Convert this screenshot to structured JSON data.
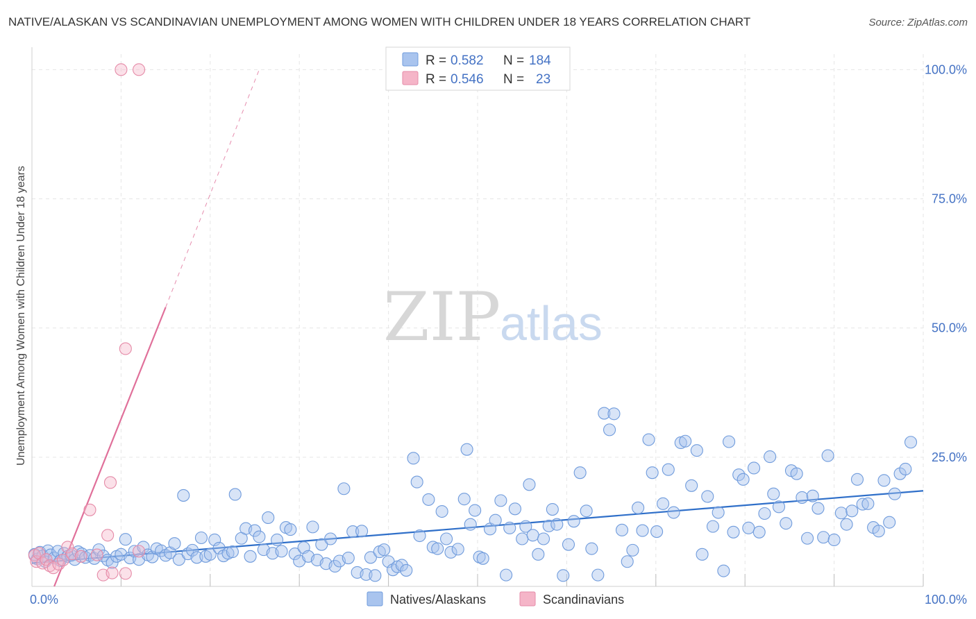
{
  "title": "NATIVE/ALASKAN VS SCANDINAVIAN UNEMPLOYMENT AMONG WOMEN WITH CHILDREN UNDER 18 YEARS CORRELATION CHART",
  "source": "Source: ZipAtlas.com",
  "watermark": {
    "zip": "ZIP",
    "atlas": "atlas"
  },
  "colors": {
    "blue_fill": "#a9c4ee",
    "blue_stroke": "#6f9bdc",
    "blue_line": "#2f6fc9",
    "pink_fill": "#f5b5c8",
    "pink_stroke": "#e58aa7",
    "pink_line": "#e0709a",
    "grid": "#e5e5e5",
    "tick": "#4472c4"
  },
  "legend": {
    "rows": [
      {
        "r_label": "R =",
        "r_value": "0.582",
        "n_label": "N =",
        "n_value": "184"
      },
      {
        "r_label": "R =",
        "r_value": "0.546",
        "n_label": "N =",
        "n_value": "23"
      }
    ]
  },
  "chart_data": {
    "type": "scatter",
    "ylabel": "Unemployment Among Women with Children Under 18 years",
    "xlim": [
      0,
      100
    ],
    "ylim": [
      0,
      103
    ],
    "x_ticks": [
      "0.0%",
      "100.0%"
    ],
    "y_ticks": [
      {
        "value": 25,
        "label": "25.0%"
      },
      {
        "value": 50,
        "label": "50.0%"
      },
      {
        "value": 75,
        "label": "75.0%"
      },
      {
        "value": 100,
        "label": "100.0%"
      }
    ],
    "grid": true,
    "legend_position": "top-center",
    "series": [
      {
        "name": "Natives/Alaskans",
        "color": "#a9c4ee",
        "trend": {
          "x": [
            0,
            100
          ],
          "y": [
            4.5,
            18.5
          ]
        },
        "points": [
          [
            0.3,
            6.2
          ],
          [
            0.6,
            5.3
          ],
          [
            0.9,
            6.6
          ],
          [
            1.2,
            5.9
          ],
          [
            1.5,
            4.8
          ],
          [
            1.8,
            6.9
          ],
          [
            2.1,
            6.1
          ],
          [
            2.5,
            5.5
          ],
          [
            2.9,
            6.8
          ],
          [
            3.2,
            5.0
          ],
          [
            3.6,
            6.4
          ],
          [
            4.0,
            5.8
          ],
          [
            4.4,
            6.0
          ],
          [
            4.8,
            5.2
          ],
          [
            5.2,
            6.7
          ],
          [
            5.6,
            6.3
          ],
          [
            6.0,
            5.6
          ],
          [
            6.5,
            6.0
          ],
          [
            7.0,
            5.4
          ],
          [
            7.5,
            7.1
          ],
          [
            8.0,
            5.9
          ],
          [
            8.5,
            5.1
          ],
          [
            9.0,
            4.6
          ],
          [
            9.5,
            5.8
          ],
          [
            10.0,
            6.2
          ],
          [
            10.5,
            9.1
          ],
          [
            11.0,
            5.5
          ],
          [
            11.5,
            6.8
          ],
          [
            12.0,
            5.2
          ],
          [
            12.5,
            7.6
          ],
          [
            13.0,
            6.1
          ],
          [
            13.5,
            5.7
          ],
          [
            14.0,
            7.3
          ],
          [
            14.5,
            6.9
          ],
          [
            15.0,
            6.0
          ],
          [
            15.5,
            6.5
          ],
          [
            16.0,
            8.3
          ],
          [
            16.5,
            5.2
          ],
          [
            17.0,
            17.6
          ],
          [
            17.5,
            6.3
          ],
          [
            18.0,
            7.0
          ],
          [
            18.5,
            5.6
          ],
          [
            19.0,
            9.4
          ],
          [
            19.5,
            5.8
          ],
          [
            20.0,
            6.2
          ],
          [
            20.5,
            9.0
          ],
          [
            21.0,
            7.4
          ],
          [
            21.5,
            5.9
          ],
          [
            22.0,
            6.4
          ],
          [
            22.5,
            6.7
          ],
          [
            22.8,
            17.8
          ],
          [
            23.5,
            9.3
          ],
          [
            24.0,
            11.2
          ],
          [
            24.5,
            5.8
          ],
          [
            25.0,
            10.8
          ],
          [
            25.5,
            9.6
          ],
          [
            26.0,
            7.1
          ],
          [
            26.5,
            13.3
          ],
          [
            27.0,
            6.4
          ],
          [
            27.5,
            9.0
          ],
          [
            28.0,
            6.8
          ],
          [
            28.5,
            11.4
          ],
          [
            29.0,
            11.0
          ],
          [
            29.5,
            6.3
          ],
          [
            30.0,
            4.9
          ],
          [
            30.5,
            7.5
          ],
          [
            31.0,
            5.8
          ],
          [
            31.5,
            11.5
          ],
          [
            32.0,
            5.1
          ],
          [
            32.5,
            8.1
          ],
          [
            33.0,
            4.4
          ],
          [
            33.5,
            9.2
          ],
          [
            34.0,
            3.9
          ],
          [
            34.5,
            4.9
          ],
          [
            35.0,
            18.9
          ],
          [
            35.5,
            5.5
          ],
          [
            36.0,
            10.6
          ],
          [
            36.5,
            2.7
          ],
          [
            37.0,
            10.7
          ],
          [
            37.5,
            2.3
          ],
          [
            38.0,
            5.6
          ],
          [
            38.5,
            2.1
          ],
          [
            39.0,
            6.7
          ],
          [
            39.5,
            7.1
          ],
          [
            40.0,
            4.8
          ],
          [
            40.5,
            3.2
          ],
          [
            41.0,
            3.8
          ],
          [
            41.5,
            4.1
          ],
          [
            42.0,
            3.1
          ],
          [
            42.8,
            24.8
          ],
          [
            43.2,
            20.2
          ],
          [
            43.5,
            9.8
          ],
          [
            44.5,
            16.8
          ],
          [
            45.0,
            7.6
          ],
          [
            45.5,
            7.3
          ],
          [
            46.0,
            14.5
          ],
          [
            46.5,
            9.2
          ],
          [
            47.0,
            6.6
          ],
          [
            47.8,
            7.2
          ],
          [
            48.5,
            16.9
          ],
          [
            48.8,
            26.5
          ],
          [
            49.2,
            12.0
          ],
          [
            49.7,
            14.7
          ],
          [
            50.2,
            5.7
          ],
          [
            50.6,
            5.4
          ],
          [
            51.4,
            11.1
          ],
          [
            52.0,
            12.8
          ],
          [
            52.6,
            16.6
          ],
          [
            53.2,
            2.2
          ],
          [
            53.6,
            11.3
          ],
          [
            54.2,
            15.0
          ],
          [
            55.0,
            9.2
          ],
          [
            55.4,
            11.6
          ],
          [
            55.8,
            19.7
          ],
          [
            56.2,
            9.9
          ],
          [
            56.8,
            6.2
          ],
          [
            57.4,
            9.2
          ],
          [
            58.0,
            11.7
          ],
          [
            58.4,
            14.9
          ],
          [
            58.9,
            12.0
          ],
          [
            59.6,
            2.1
          ],
          [
            60.2,
            8.1
          ],
          [
            60.8,
            12.6
          ],
          [
            61.5,
            22.0
          ],
          [
            62.2,
            14.6
          ],
          [
            62.8,
            7.3
          ],
          [
            63.5,
            2.2
          ],
          [
            64.2,
            33.5
          ],
          [
            64.8,
            30.3
          ],
          [
            65.3,
            33.4
          ],
          [
            66.2,
            10.9
          ],
          [
            66.8,
            4.8
          ],
          [
            67.4,
            7.0
          ],
          [
            68.0,
            15.2
          ],
          [
            68.5,
            10.8
          ],
          [
            69.2,
            28.4
          ],
          [
            69.6,
            22.0
          ],
          [
            70.1,
            10.6
          ],
          [
            70.8,
            16.0
          ],
          [
            71.4,
            22.6
          ],
          [
            72.0,
            14.3
          ],
          [
            72.8,
            27.8
          ],
          [
            73.3,
            28.1
          ],
          [
            74.0,
            19.5
          ],
          [
            74.6,
            26.3
          ],
          [
            75.2,
            6.2
          ],
          [
            75.8,
            17.4
          ],
          [
            76.4,
            11.6
          ],
          [
            77.0,
            14.3
          ],
          [
            77.6,
            3.0
          ],
          [
            78.2,
            28.0
          ],
          [
            78.7,
            10.5
          ],
          [
            79.3,
            21.6
          ],
          [
            79.8,
            20.7
          ],
          [
            80.4,
            11.3
          ],
          [
            81.0,
            22.9
          ],
          [
            81.6,
            10.5
          ],
          [
            82.2,
            14.1
          ],
          [
            82.8,
            25.1
          ],
          [
            83.2,
            17.9
          ],
          [
            83.8,
            15.4
          ],
          [
            84.6,
            12.2
          ],
          [
            85.2,
            22.4
          ],
          [
            85.8,
            21.8
          ],
          [
            86.4,
            17.2
          ],
          [
            87.0,
            9.3
          ],
          [
            87.6,
            17.5
          ],
          [
            88.2,
            15.1
          ],
          [
            88.8,
            9.5
          ],
          [
            89.3,
            25.3
          ],
          [
            90.0,
            9.0
          ],
          [
            90.8,
            14.2
          ],
          [
            91.4,
            12.0
          ],
          [
            92.0,
            14.6
          ],
          [
            92.6,
            20.7
          ],
          [
            93.2,
            15.9
          ],
          [
            93.8,
            16.0
          ],
          [
            94.4,
            11.4
          ],
          [
            95.0,
            10.7
          ],
          [
            95.6,
            20.5
          ],
          [
            96.2,
            12.4
          ],
          [
            96.8,
            17.9
          ],
          [
            97.4,
            21.8
          ],
          [
            98.0,
            22.7
          ],
          [
            98.6,
            27.9
          ]
        ]
      },
      {
        "name": "Scandinavians",
        "color": "#f5b5c8",
        "trend": {
          "x": [
            2.5,
            15
          ],
          "y": [
            0,
            54
          ]
        },
        "trend_extension": {
          "x": [
            15,
            25.5
          ],
          "y": [
            54,
            100
          ]
        },
        "points": [
          [
            0.3,
            6.0
          ],
          [
            0.5,
            4.8
          ],
          [
            0.8,
            6.4
          ],
          [
            1.2,
            4.5
          ],
          [
            1.6,
            5.2
          ],
          [
            2.0,
            4.0
          ],
          [
            2.4,
            3.6
          ],
          [
            3.0,
            4.3
          ],
          [
            3.5,
            5.1
          ],
          [
            4.0,
            7.6
          ],
          [
            4.5,
            6.3
          ],
          [
            5.5,
            5.8
          ],
          [
            6.5,
            14.8
          ],
          [
            7.3,
            6.1
          ],
          [
            8.0,
            2.2
          ],
          [
            8.5,
            9.9
          ],
          [
            8.8,
            20.1
          ],
          [
            9.0,
            2.6
          ],
          [
            10.0,
            100.0
          ],
          [
            10.5,
            46.0
          ],
          [
            10.5,
            2.5
          ],
          [
            12.0,
            100.0
          ],
          [
            12.0,
            6.8
          ]
        ]
      }
    ]
  },
  "bottom_legend": [
    {
      "label": "Natives/Alaskans"
    },
    {
      "label": "Scandinavians"
    }
  ]
}
